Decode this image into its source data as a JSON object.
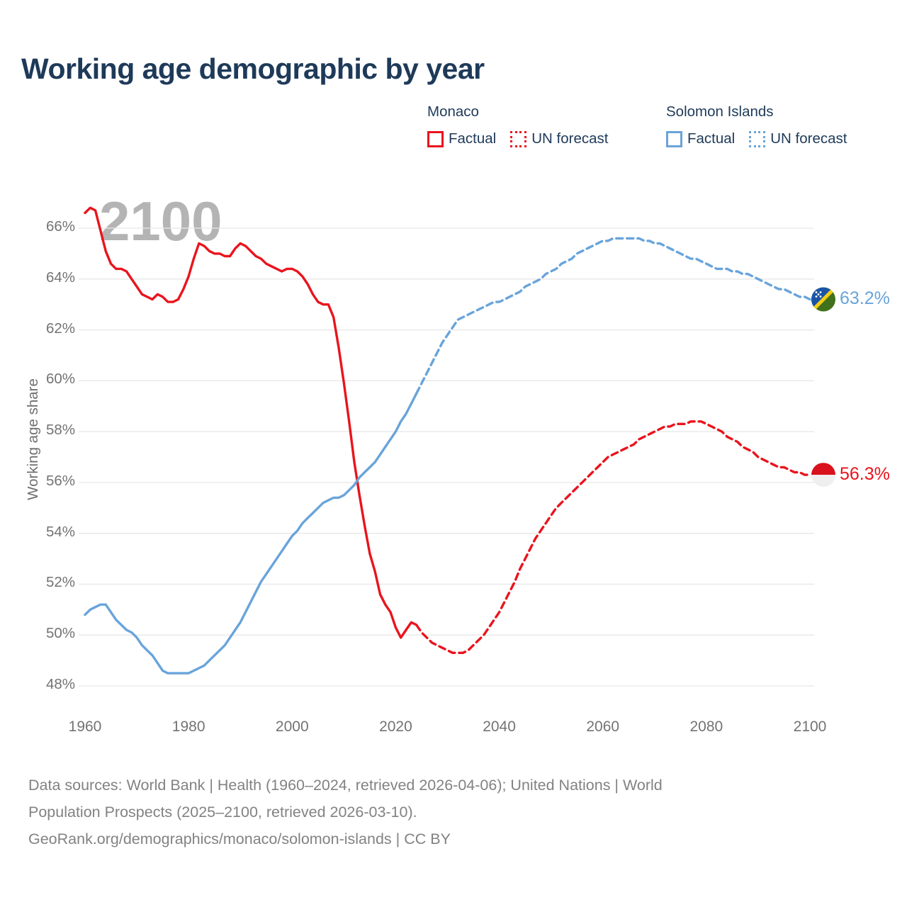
{
  "header": {
    "title": "Working age demographic by year"
  },
  "legend": {
    "groups": [
      {
        "title": "Monaco",
        "color": "#e9141d",
        "items": [
          {
            "label": "Factual",
            "style": "solid"
          },
          {
            "label": "UN forecast",
            "style": "dotted"
          }
        ]
      },
      {
        "title": "Solomon Islands",
        "color": "#69a4da",
        "items": [
          {
            "label": "Factual",
            "style": "solid"
          },
          {
            "label": "UN forecast",
            "style": "dotted"
          }
        ]
      }
    ]
  },
  "chart": {
    "watermark": "2100"
  },
  "chart_data": {
    "type": "line",
    "title": "Working age demographic by year",
    "xlabel": "",
    "ylabel": "Working age share",
    "grid": "horizontal",
    "legend_position": "top-right",
    "colors": {
      "monaco": "#e9141d",
      "solomon_islands": "#69a4da",
      "gridline": "#e7e7e7",
      "axis_text": "#737373",
      "watermark": "#b4b4b4",
      "title_text": "#1e3a59"
    },
    "x_axis": {
      "range": [
        1960,
        2100
      ],
      "ticks": [
        1960,
        1980,
        2000,
        2020,
        2040,
        2060,
        2080,
        2100
      ],
      "tick_labels": [
        "1960",
        "1980",
        "2000",
        "2020",
        "2040",
        "2060",
        "2080",
        "2100"
      ]
    },
    "y_axis": {
      "range_displayed": [
        48,
        66
      ],
      "unit": "%",
      "ticks": [
        66,
        64,
        62,
        60,
        58,
        56,
        54,
        52,
        50,
        48
      ],
      "tick_labels": [
        "66%",
        "64%",
        "62%",
        "60%",
        "58%",
        "56%",
        "54%",
        "52%",
        "50%",
        "48%"
      ]
    },
    "series": [
      {
        "id": "monaco-factual",
        "name": "Monaco Factual",
        "color": "#e9141d",
        "dash": "solid",
        "start_year": 1960,
        "values": [
          66.6,
          66.8,
          66.7,
          65.9,
          65.1,
          64.6,
          64.4,
          64.4,
          64.3,
          64.0,
          63.7,
          63.4,
          63.3,
          63.2,
          63.4,
          63.3,
          63.1,
          63.1,
          63.2,
          63.6,
          64.1,
          64.8,
          65.4,
          65.3,
          65.1,
          65.0,
          65.0,
          64.9,
          64.9,
          65.2,
          65.4,
          65.3,
          65.1,
          64.9,
          64.8,
          64.6,
          64.5,
          64.4,
          64.3,
          64.4,
          64.4,
          64.3,
          64.1,
          63.8,
          63.4,
          63.1,
          63.0,
          63.0,
          62.5,
          61.3,
          59.9,
          58.4,
          56.8,
          55.5,
          54.3,
          53.2,
          52.5,
          51.6,
          51.2,
          50.9,
          50.3,
          49.9,
          50.2,
          50.5,
          50.4
        ]
      },
      {
        "id": "monaco-forecast",
        "name": "Monaco UN forecast",
        "color": "#e9141d",
        "dash": "dashed",
        "start_year": 2024,
        "values": [
          50.4,
          50.1,
          49.9,
          49.7,
          49.6,
          49.5,
          49.4,
          49.3,
          49.3,
          49.3,
          49.4,
          49.6,
          49.8,
          50.0,
          50.3,
          50.6,
          50.9,
          51.3,
          51.7,
          52.1,
          52.6,
          53.0,
          53.4,
          53.8,
          54.1,
          54.4,
          54.7,
          55.0,
          55.2,
          55.4,
          55.6,
          55.8,
          56.0,
          56.2,
          56.4,
          56.6,
          56.8,
          57.0,
          57.1,
          57.2,
          57.3,
          57.4,
          57.5,
          57.7,
          57.8,
          57.9,
          58.0,
          58.1,
          58.2,
          58.2,
          58.3,
          58.3,
          58.3,
          58.4,
          58.4,
          58.4,
          58.3,
          58.2,
          58.1,
          58.0,
          57.8,
          57.7,
          57.6,
          57.4,
          57.3,
          57.2,
          57.0,
          56.9,
          56.8,
          56.7,
          56.6,
          56.6,
          56.5,
          56.4,
          56.4,
          56.3,
          56.3
        ]
      },
      {
        "id": "solomon-factual",
        "name": "Solomon Islands Factual",
        "color": "#69a4da",
        "dash": "solid",
        "start_year": 1960,
        "values": [
          50.8,
          51.0,
          51.1,
          51.2,
          51.2,
          50.9,
          50.6,
          50.4,
          50.2,
          50.1,
          49.9,
          49.6,
          49.4,
          49.2,
          48.9,
          48.6,
          48.5,
          48.5,
          48.5,
          48.5,
          48.5,
          48.6,
          48.7,
          48.8,
          49.0,
          49.2,
          49.4,
          49.6,
          49.9,
          50.2,
          50.5,
          50.9,
          51.3,
          51.7,
          52.1,
          52.4,
          52.7,
          53.0,
          53.3,
          53.6,
          53.9,
          54.1,
          54.4,
          54.6,
          54.8,
          55.0,
          55.2,
          55.3,
          55.4,
          55.4,
          55.5,
          55.7,
          55.9,
          56.2,
          56.4,
          56.6,
          56.8,
          57.1,
          57.4,
          57.7,
          58.0,
          58.4,
          58.7,
          59.1,
          59.5
        ]
      },
      {
        "id": "solomon-forecast",
        "name": "Solomon Islands UN forecast",
        "color": "#69a4da",
        "dash": "dashed",
        "start_year": 2024,
        "values": [
          59.5,
          59.9,
          60.3,
          60.7,
          61.1,
          61.5,
          61.8,
          62.1,
          62.4,
          62.5,
          62.6,
          62.7,
          62.8,
          62.9,
          63.0,
          63.1,
          63.1,
          63.2,
          63.3,
          63.4,
          63.5,
          63.7,
          63.8,
          63.9,
          64.0,
          64.2,
          64.3,
          64.4,
          64.6,
          64.7,
          64.8,
          65.0,
          65.1,
          65.2,
          65.3,
          65.4,
          65.5,
          65.5,
          65.6,
          65.6,
          65.6,
          65.6,
          65.6,
          65.6,
          65.5,
          65.5,
          65.4,
          65.4,
          65.3,
          65.2,
          65.1,
          65.0,
          64.9,
          64.8,
          64.8,
          64.7,
          64.6,
          64.5,
          64.4,
          64.4,
          64.4,
          64.3,
          64.3,
          64.2,
          64.2,
          64.1,
          64.0,
          63.9,
          63.8,
          63.7,
          63.6,
          63.6,
          63.5,
          63.4,
          63.3,
          63.3,
          63.2
        ]
      }
    ],
    "end_markers": [
      {
        "series": "Solomon Islands",
        "flag": "solomon-islands",
        "value": 63.2,
        "label": "63.2%",
        "color": "#69a4da"
      },
      {
        "series": "Monaco",
        "flag": "monaco",
        "value": 56.3,
        "label": "56.3%",
        "color": "#e9141d"
      }
    ],
    "flag_colors": {
      "monaco": {
        "top": "#d8111c",
        "bottom": "#efefef"
      },
      "solomon_islands": {
        "blue": "#1a55a5",
        "green": "#41711d",
        "yellow": "#f5ce14",
        "stars": "#ffffff"
      }
    }
  },
  "footer": {
    "lines": [
      "Data sources: World Bank | Health (1960–2024, retrieved 2026-04-06); United Nations | World",
      "Population Prospects (2025–2100, retrieved 2026-03-10).",
      "GeoRank.org/demographics/monaco/solomon-islands | CC BY"
    ]
  }
}
